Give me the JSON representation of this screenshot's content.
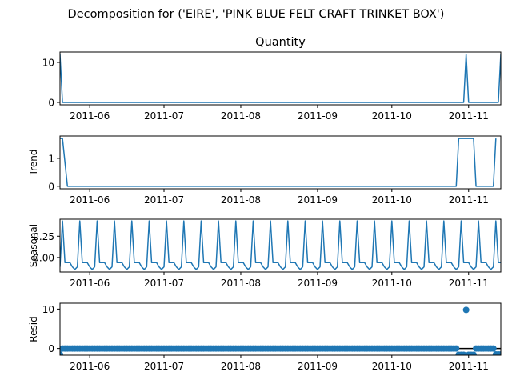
{
  "figure": {
    "suptitle": "Decomposition for ('EIRE', 'PINK BLUE FELT CRAFT TRINKET BOX')"
  },
  "chart_data": {
    "type": "line",
    "x_start": "2011-05-20",
    "x_end": "2011-11-14",
    "x_ticks": [
      "2011-06",
      "2011-07",
      "2011-08",
      "2011-09",
      "2011-10",
      "2011-11"
    ],
    "line_color": "#1f77b4",
    "panels": [
      {
        "id": "observed",
        "title": "Quantity",
        "ylabel": "",
        "kind": "line",
        "ylim": [
          -0.6,
          12.6
        ],
        "yticks": [
          0,
          10
        ],
        "points": [
          [
            "2011-05-20",
            12
          ],
          [
            "2011-05-21",
            0
          ],
          [
            "2011-10-30",
            0
          ],
          [
            "2011-10-31",
            12
          ],
          [
            "2011-11-01",
            0
          ],
          [
            "2011-11-13",
            0
          ],
          [
            "2011-11-14",
            12
          ]
        ]
      },
      {
        "id": "trend",
        "title": "",
        "ylabel": "Trend",
        "kind": "line",
        "ylim": [
          -0.09,
          1.8
        ],
        "yticks": [
          0,
          1
        ],
        "points": [
          [
            "2011-05-20",
            1.71
          ],
          [
            "2011-05-21",
            1.71
          ],
          [
            "2011-05-23",
            0
          ],
          [
            "2011-10-27",
            0
          ],
          [
            "2011-10-28",
            1.71
          ],
          [
            "2011-11-03",
            1.71
          ],
          [
            "2011-11-04",
            0
          ],
          [
            "2011-11-11",
            0
          ],
          [
            "2011-11-12",
            1.71
          ]
        ]
      },
      {
        "id": "seasonal",
        "title": "",
        "ylabel": "Seasonal",
        "kind": "seasonal",
        "ylim": [
          -0.17,
          0.45
        ],
        "yticks": [
          0.25,
          0.0
        ],
        "ytick_labels": [
          "0.25",
          "0.00"
        ],
        "pattern": [
          0.43,
          -0.06,
          -0.06,
          -0.06,
          -0.11,
          -0.14,
          -0.11
        ],
        "peak_anchor": "2011-05-21"
      },
      {
        "id": "resid",
        "title": "",
        "ylabel": "Resid",
        "kind": "scatter",
        "ylim": [
          -1.7,
          11.5
        ],
        "yticks": [
          0,
          10
        ],
        "baseline": 0,
        "default_value": 0,
        "special_points": [
          [
            "2011-05-20",
            -1.5
          ],
          [
            "2011-10-28",
            -1.6
          ],
          [
            "2011-10-29",
            -1.6
          ],
          [
            "2011-10-30",
            -1.6
          ],
          [
            "2011-10-31",
            9.8
          ],
          [
            "2011-11-01",
            -1.6
          ],
          [
            "2011-11-02",
            -1.6
          ],
          [
            "2011-11-03",
            -1.6
          ],
          [
            "2011-11-12",
            -1.5
          ],
          [
            "2011-11-13",
            -1.5
          ],
          [
            "2011-11-14",
            -1.5
          ]
        ]
      }
    ]
  }
}
